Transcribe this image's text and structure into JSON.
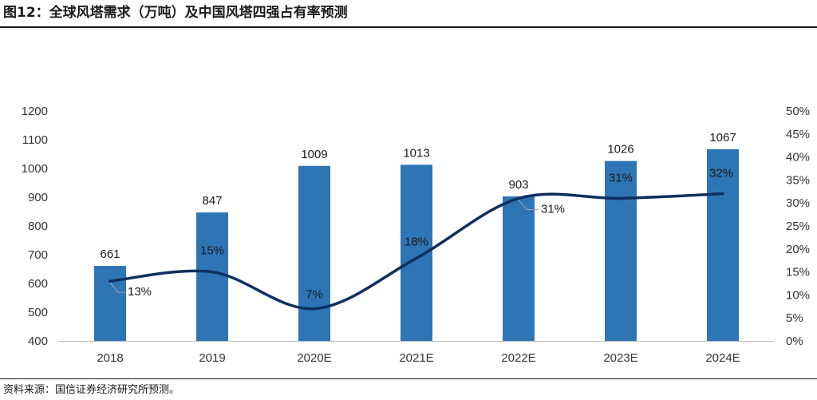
{
  "header": {
    "title": "图12：全球风塔需求（万吨）及中国风塔四强占有率预测"
  },
  "footer": {
    "source": "资料来源：国信证券经济研究所预测。"
  },
  "chart_data": {
    "type": "bar",
    "categories": [
      "2018",
      "2019",
      "2020E",
      "2021E",
      "2022E",
      "2023E",
      "2024E"
    ],
    "series": [
      {
        "type": "bar",
        "axis": "left",
        "values": [
          661,
          847,
          1009,
          1013,
          903,
          1026,
          1067
        ],
        "labels": [
          "661",
          "847",
          "1009",
          "1013",
          "903",
          "1026",
          "1067"
        ],
        "color": "#2e75b6"
      },
      {
        "type": "line",
        "axis": "right",
        "values": [
          13,
          15,
          7,
          18,
          31,
          31,
          32
        ],
        "labels": [
          "13%",
          "15%",
          "7%",
          "18%",
          "31%",
          "31%",
          "32%"
        ],
        "color": "#0d2f5f"
      }
    ],
    "y_left": {
      "ylim": [
        400,
        1200
      ],
      "ticks": [
        "400",
        "500",
        "600",
        "700",
        "800",
        "900",
        "1000",
        "1100",
        "1200"
      ]
    },
    "y_right": {
      "ylim": [
        0,
        50
      ],
      "ticks": [
        "0%",
        "5%",
        "10%",
        "15%",
        "20%",
        "25%",
        "30%",
        "35%",
        "40%",
        "45%",
        "50%"
      ]
    },
    "grid": false,
    "legend": "none"
  }
}
